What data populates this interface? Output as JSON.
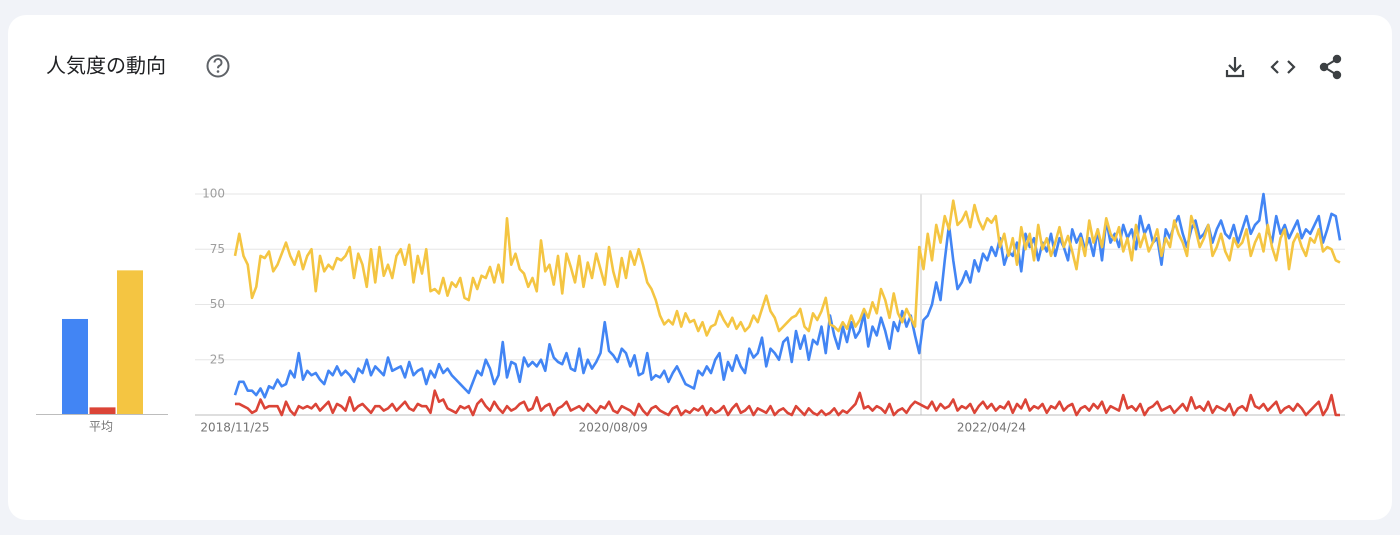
{
  "title": "人気度の動向",
  "chart_data": [
    {
      "type": "line",
      "ylim": [
        0,
        100
      ],
      "yticks": [
        25,
        50,
        75,
        100
      ],
      "grid": true,
      "categories": [
        "2018/11/25",
        null,
        null,
        null,
        null,
        null,
        null,
        null,
        null,
        null,
        null,
        null,
        null,
        null,
        null,
        null,
        null,
        null,
        null,
        null,
        null,
        null,
        null,
        null,
        null,
        null,
        null,
        null,
        null,
        null,
        null,
        null,
        null,
        null,
        null,
        null,
        null,
        null,
        null,
        null,
        null,
        null,
        null,
        null,
        null,
        null,
        null,
        null,
        null,
        null,
        null,
        null,
        null,
        null,
        null,
        null,
        null,
        null,
        null,
        null,
        null,
        null,
        null,
        null,
        null,
        null,
        null,
        null,
        null,
        null,
        null,
        null,
        null,
        null,
        null,
        null,
        null,
        null,
        null,
        null,
        null,
        null,
        null,
        null,
        null,
        null,
        null,
        null,
        null,
        "2020/08/09",
        null,
        null,
        null,
        null,
        null,
        null,
        null,
        null,
        null,
        null,
        null,
        null,
        null,
        null,
        null,
        null,
        null,
        null,
        null,
        null,
        null,
        null,
        null,
        null,
        null,
        null,
        null,
        null,
        null,
        null,
        null,
        null,
        null,
        null,
        null,
        null,
        null,
        null,
        null,
        null,
        null,
        null,
        null,
        null,
        null,
        null,
        null,
        null,
        null,
        null,
        null,
        null,
        null,
        null,
        null,
        null,
        null,
        null,
        null,
        null,
        null,
        null,
        null,
        null,
        null,
        null,
        null,
        null,
        null,
        null,
        null,
        null,
        null,
        null,
        null,
        null,
        null,
        null,
        null,
        null,
        null,
        null,
        null,
        null,
        null,
        null,
        null,
        null,
        "2022/04/24",
        null,
        null,
        null,
        null,
        null,
        null,
        null,
        null,
        null,
        null,
        null,
        null,
        null,
        null,
        null,
        null,
        null,
        null,
        null,
        null,
        null,
        null,
        null,
        null,
        null,
        null,
        null,
        null,
        null,
        null,
        null,
        null,
        null,
        null,
        null,
        null,
        null,
        null,
        null,
        null,
        null,
        null,
        null,
        null,
        null,
        null,
        null,
        null,
        null,
        null,
        null,
        null,
        null,
        null,
        null,
        null,
        null,
        null,
        null,
        null,
        null,
        null,
        null,
        null,
        null,
        null,
        null,
        null,
        null,
        null,
        null,
        null,
        null,
        null,
        null,
        null,
        null,
        null,
        null,
        null,
        null,
        null
      ],
      "series": [
        {
          "color": "#4285f4",
          "values": [
            9,
            15,
            15,
            11,
            11,
            9,
            12,
            8,
            13,
            12,
            16,
            13,
            14,
            20,
            17,
            28,
            16,
            20,
            18,
            19,
            16,
            14,
            20,
            18,
            22,
            18,
            20,
            18,
            15,
            21,
            19,
            25,
            18,
            22,
            20,
            18,
            26,
            20,
            21,
            22,
            17,
            24,
            18,
            20,
            21,
            14,
            20,
            17,
            23,
            19,
            21,
            18,
            16,
            14,
            12,
            10,
            15,
            20,
            18,
            25,
            21,
            14,
            18,
            33,
            17,
            24,
            23,
            15,
            26,
            22,
            24,
            22,
            25,
            20,
            32,
            26,
            24,
            23,
            28,
            21,
            20,
            30,
            19,
            25,
            21,
            24,
            28,
            42,
            29,
            27,
            24,
            30,
            28,
            22,
            27,
            18,
            19,
            28,
            16,
            18,
            17,
            20,
            15,
            19,
            22,
            18,
            14,
            13,
            12,
            20,
            18,
            22,
            19,
            25,
            28,
            16,
            24,
            20,
            27,
            22,
            19,
            30,
            26,
            28,
            35,
            22,
            30,
            28,
            25,
            33,
            35,
            24,
            38,
            30,
            36,
            25,
            34,
            32,
            40,
            28,
            45,
            36,
            30,
            40,
            33,
            42,
            35,
            38,
            46,
            31,
            40,
            36,
            44,
            38,
            30,
            42,
            38,
            47,
            40,
            45,
            36,
            28,
            43,
            45,
            50,
            60,
            52,
            70,
            86,
            70,
            57,
            60,
            65,
            60,
            70,
            65,
            73,
            70,
            76,
            72,
            80,
            68,
            74,
            72,
            78,
            65,
            82,
            76,
            80,
            70,
            78,
            74,
            82,
            72,
            80,
            76,
            70,
            84,
            78,
            82,
            75,
            80,
            72,
            84,
            70,
            88,
            78,
            82,
            76,
            86,
            80,
            84,
            75,
            90,
            82,
            86,
            78,
            80,
            68,
            84,
            80,
            86,
            90,
            82,
            76,
            84,
            88,
            80,
            82,
            86,
            78,
            84,
            88,
            82,
            80,
            86,
            78,
            84,
            90,
            82,
            86,
            88,
            100,
            84,
            78,
            90,
            82,
            86,
            80,
            84,
            88,
            80,
            84,
            82,
            86,
            90,
            78,
            84,
            91,
            90,
            79
          ]
        },
        {
          "color": "#db4437",
          "values": [
            5,
            5,
            4,
            3,
            1,
            2,
            7,
            3,
            4,
            4,
            4,
            0,
            6,
            2,
            0,
            4,
            3,
            4,
            3,
            5,
            2,
            4,
            6,
            1,
            5,
            4,
            2,
            8,
            2,
            4,
            5,
            3,
            1,
            4,
            4,
            2,
            3,
            5,
            2,
            4,
            6,
            3,
            2,
            5,
            4,
            4,
            1,
            11,
            6,
            7,
            3,
            2,
            1,
            4,
            3,
            4,
            0,
            5,
            7,
            4,
            2,
            6,
            3,
            1,
            4,
            2,
            3,
            5,
            6,
            2,
            3,
            8,
            2,
            4,
            5,
            0,
            3,
            4,
            6,
            2,
            3,
            4,
            2,
            5,
            3,
            1,
            4,
            3,
            6,
            2,
            1,
            4,
            3,
            2,
            0,
            5,
            2,
            0,
            3,
            4,
            2,
            1,
            0,
            3,
            4,
            0,
            2,
            1,
            3,
            2,
            4,
            0,
            3,
            1,
            2,
            4,
            0,
            3,
            5,
            1,
            2,
            4,
            0,
            3,
            2,
            1,
            4,
            0,
            2,
            3,
            1,
            0,
            4,
            2,
            0,
            3,
            1,
            0,
            2,
            0,
            1,
            3,
            0,
            2,
            1,
            3,
            5,
            10,
            3,
            4,
            2,
            4,
            3,
            1,
            5,
            0,
            2,
            3,
            1,
            4,
            6,
            5,
            4,
            3,
            6,
            2,
            5,
            3,
            4,
            7,
            2,
            4,
            3,
            5,
            1,
            4,
            6,
            3,
            5,
            2,
            4,
            3,
            6,
            1,
            5,
            3,
            7,
            2,
            4,
            3,
            5,
            1,
            4,
            3,
            6,
            2,
            4,
            5,
            0,
            3,
            4,
            2,
            5,
            3,
            6,
            1,
            4,
            3,
            2,
            9,
            3,
            4,
            2,
            5,
            0,
            3,
            4,
            6,
            2,
            3,
            4,
            1,
            3,
            5,
            2,
            8,
            3,
            4,
            2,
            6,
            1,
            4,
            3,
            2,
            5,
            0,
            3,
            4,
            2,
            9,
            4,
            3,
            5,
            2,
            4,
            6,
            1,
            3,
            4,
            2,
            5,
            3,
            0,
            2,
            4,
            6,
            0,
            3,
            9,
            0,
            0
          ]
        },
        {
          "color": "#f4c542",
          "values": [
            72,
            82,
            72,
            68,
            53,
            58,
            72,
            71,
            74,
            65,
            68,
            73,
            78,
            72,
            68,
            74,
            66,
            72,
            75,
            56,
            72,
            65,
            68,
            66,
            71,
            70,
            72,
            76,
            62,
            73,
            68,
            58,
            75,
            60,
            76,
            63,
            68,
            62,
            72,
            75,
            68,
            77,
            60,
            72,
            64,
            75,
            56,
            57,
            55,
            62,
            54,
            60,
            58,
            62,
            53,
            52,
            62,
            57,
            63,
            62,
            67,
            60,
            68,
            60,
            89,
            68,
            73,
            66,
            64,
            58,
            62,
            56,
            79,
            65,
            68,
            59,
            72,
            55,
            73,
            67,
            60,
            72,
            58,
            69,
            62,
            73,
            66,
            59,
            76,
            65,
            58,
            71,
            62,
            74,
            68,
            75,
            68,
            60,
            57,
            52,
            45,
            41,
            43,
            41,
            47,
            40,
            46,
            42,
            43,
            38,
            42,
            36,
            40,
            41,
            47,
            43,
            40,
            44,
            39,
            42,
            38,
            40,
            45,
            42,
            48,
            54,
            47,
            44,
            38,
            40,
            42,
            44,
            45,
            48,
            40,
            38,
            46,
            43,
            47,
            53,
            41,
            40,
            38,
            42,
            39,
            45,
            40,
            43,
            48,
            44,
            51,
            46,
            57,
            52,
            44,
            55,
            46,
            42,
            48,
            44,
            40,
            76,
            66,
            82,
            70,
            86,
            78,
            90,
            84,
            97,
            86,
            88,
            92,
            85,
            95,
            88,
            84,
            89,
            87,
            90,
            76,
            82,
            72,
            80,
            68,
            85,
            75,
            82,
            70,
            86,
            75,
            80,
            72,
            78,
            85,
            76,
            81,
            74,
            66,
            80,
            72,
            88,
            78,
            84,
            76,
            89,
            82,
            79,
            85,
            74,
            80,
            70,
            86,
            76,
            82,
            74,
            78,
            84,
            72,
            80,
            76,
            88,
            82,
            78,
            72,
            90,
            84,
            76,
            80,
            86,
            72,
            76,
            82,
            74,
            70,
            80,
            76,
            78,
            84,
            72,
            78,
            82,
            74,
            86,
            76,
            70,
            80,
            84,
            66,
            78,
            82,
            76,
            72,
            80,
            78,
            84,
            74,
            76,
            75,
            70,
            69
          ]
        }
      ]
    },
    {
      "type": "bar",
      "ylim": [
        0,
        100
      ],
      "categories": [
        "平均"
      ],
      "series": [
        {
          "color": "#4285f4",
          "values": [
            43
          ]
        },
        {
          "color": "#db4437",
          "values": [
            3
          ]
        },
        {
          "color": "#f4c542",
          "values": [
            65
          ]
        }
      ]
    }
  ]
}
